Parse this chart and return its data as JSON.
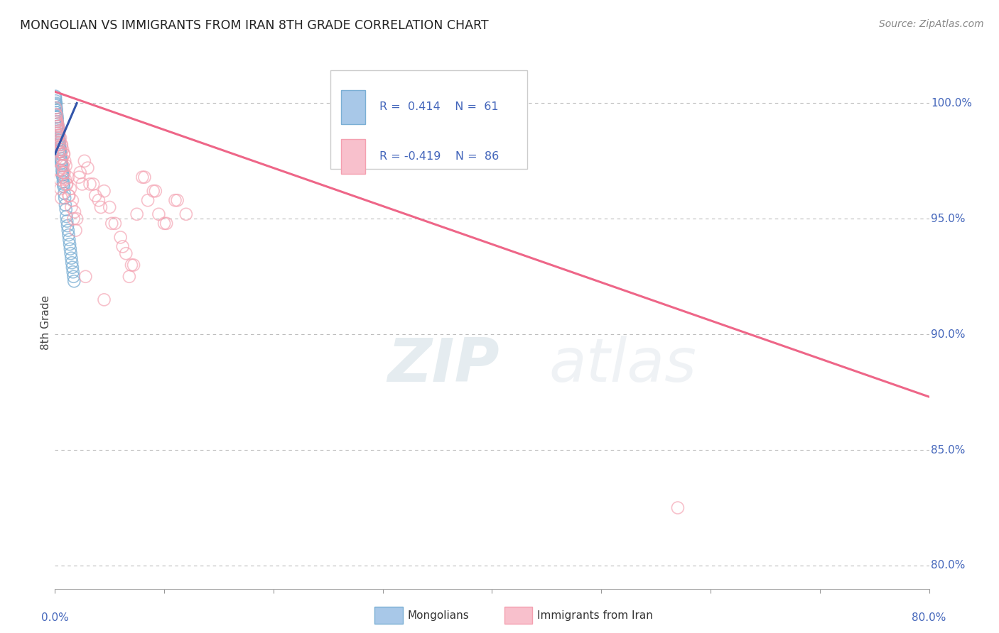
{
  "title": "MONGOLIAN VS IMMIGRANTS FROM IRAN 8TH GRADE CORRELATION CHART",
  "source": "Source: ZipAtlas.com",
  "ylabel_left": "8th Grade",
  "y_right_ticks": [
    80.0,
    85.0,
    90.0,
    95.0,
    100.0
  ],
  "x_range": [
    0.0,
    80.0
  ],
  "y_range": [
    79.0,
    102.0
  ],
  "blue_color": "#7BAFD4",
  "pink_color": "#F4A0B0",
  "blue_fill_color": "#A8C8E8",
  "pink_fill_color": "#F8C0CC",
  "blue_line_color": "#3355AA",
  "pink_line_color": "#EE6688",
  "watermark_color": "#C8D8EE",
  "background_color": "#FFFFFF",
  "grid_color": "#BBBBBB",
  "title_color": "#222222",
  "right_tick_color": "#4466BB",
  "bottom_tick_color": "#4466BB",
  "legend_text_color": "#4466BB",
  "blue_scatter_x": [
    0.05,
    0.08,
    0.1,
    0.12,
    0.15,
    0.18,
    0.2,
    0.22,
    0.25,
    0.28,
    0.3,
    0.32,
    0.35,
    0.38,
    0.4,
    0.42,
    0.45,
    0.48,
    0.5,
    0.52,
    0.55,
    0.58,
    0.6,
    0.62,
    0.65,
    0.68,
    0.7,
    0.72,
    0.75,
    0.78,
    0.8,
    0.85,
    0.9,
    0.95,
    1.0,
    1.05,
    1.1,
    1.15,
    1.2,
    1.25,
    1.3,
    1.35,
    1.4,
    1.45,
    1.5,
    1.55,
    1.6,
    1.65,
    1.7,
    1.75,
    0.04,
    0.06,
    0.09,
    0.13,
    0.16,
    0.19,
    0.23,
    0.27,
    0.33,
    0.37,
    0.43
  ],
  "blue_scatter_y": [
    100.2,
    99.9,
    100.0,
    99.8,
    99.7,
    99.5,
    99.4,
    99.3,
    99.1,
    99.0,
    98.9,
    98.8,
    98.6,
    98.5,
    98.4,
    98.3,
    98.1,
    98.0,
    97.9,
    97.8,
    97.6,
    97.5,
    97.4,
    97.3,
    97.1,
    97.0,
    96.9,
    96.8,
    96.6,
    96.5,
    96.4,
    96.1,
    95.9,
    95.6,
    95.4,
    95.1,
    94.9,
    94.7,
    94.5,
    94.3,
    94.1,
    93.9,
    93.7,
    93.5,
    93.3,
    93.1,
    92.9,
    92.7,
    92.5,
    92.3,
    100.3,
    100.1,
    99.95,
    99.6,
    99.4,
    99.2,
    99.0,
    98.7,
    98.4,
    98.2,
    97.9
  ],
  "pink_scatter_x": [
    0.1,
    0.2,
    0.3,
    0.4,
    0.5,
    0.6,
    0.7,
    0.8,
    0.9,
    1.0,
    1.2,
    1.4,
    1.6,
    1.8,
    2.0,
    2.5,
    3.0,
    3.5,
    4.0,
    4.5,
    5.0,
    5.5,
    6.0,
    6.5,
    7.0,
    7.5,
    8.0,
    8.5,
    9.0,
    9.5,
    10.0,
    11.0,
    12.0,
    0.15,
    0.25,
    0.35,
    0.45,
    0.55,
    0.65,
    0.75,
    0.85,
    0.95,
    1.1,
    1.3,
    1.5,
    1.7,
    1.9,
    2.2,
    2.7,
    3.2,
    3.7,
    4.2,
    5.2,
    6.2,
    7.2,
    8.2,
    9.2,
    10.2,
    11.2,
    0.05,
    0.12,
    0.18,
    0.22,
    0.28,
    0.32,
    0.38,
    0.42,
    0.48,
    0.52,
    0.58,
    4.5,
    0.08,
    0.16,
    2.3,
    0.23,
    0.37,
    57.0,
    2.8,
    6.8,
    0.62,
    0.82,
    1.05,
    1.25,
    0.68,
    0.78
  ],
  "pink_scatter_y": [
    99.5,
    99.2,
    99.0,
    98.8,
    98.5,
    98.2,
    98.0,
    97.8,
    97.5,
    97.3,
    96.8,
    96.3,
    95.8,
    95.3,
    95.0,
    96.5,
    97.2,
    96.5,
    95.8,
    96.2,
    95.5,
    94.8,
    94.2,
    93.5,
    93.0,
    95.2,
    96.8,
    95.8,
    96.2,
    95.2,
    94.8,
    95.8,
    95.2,
    99.3,
    98.9,
    98.6,
    98.3,
    97.9,
    97.6,
    97.3,
    97.0,
    96.7,
    96.5,
    96.0,
    95.5,
    95.0,
    94.5,
    96.8,
    97.5,
    96.5,
    96.0,
    95.5,
    94.8,
    93.8,
    93.0,
    96.8,
    96.2,
    94.8,
    95.8,
    99.8,
    99.5,
    99.1,
    98.7,
    98.3,
    97.9,
    97.5,
    97.1,
    96.7,
    96.3,
    95.9,
    91.5,
    99.2,
    98.5,
    97.0,
    99.1,
    98.6,
    82.5,
    92.5,
    92.5,
    98.2,
    97.8,
    96.5,
    96.0,
    97.3,
    97.0
  ],
  "blue_line_x0": 0.0,
  "blue_line_x1": 2.0,
  "blue_line_y0": 97.8,
  "blue_line_y1": 100.0,
  "pink_line_x0": 0.0,
  "pink_line_x1": 80.0,
  "pink_line_y0": 100.5,
  "pink_line_y1": 87.3
}
